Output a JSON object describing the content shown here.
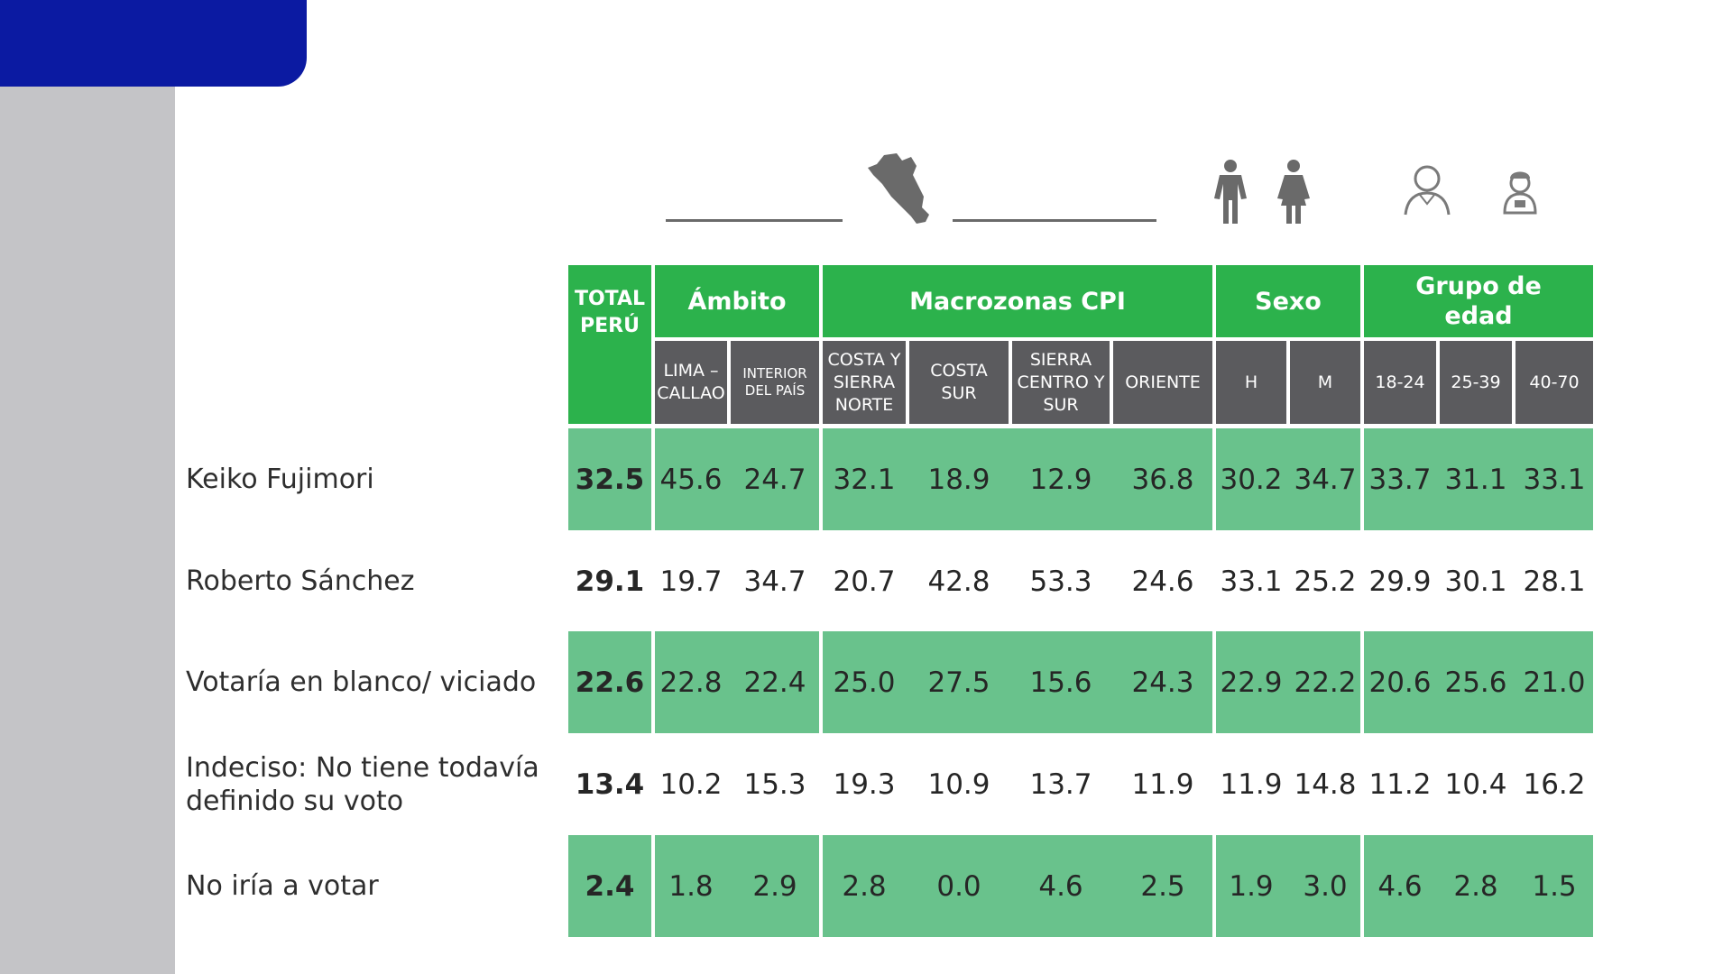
{
  "table": {
    "total_header": "TOTAL PERÚ",
    "groups": [
      {
        "label": "Ámbito",
        "sub": [
          "LIMA – CALLAO",
          "INTERIOR DEL PAÍS"
        ]
      },
      {
        "label": "Macrozonas CPI",
        "sub": [
          "COSTA Y SIERRA NORTE",
          "COSTA SUR",
          "SIERRA CENTRO Y SUR",
          "ORIENTE"
        ]
      },
      {
        "label": "Sexo",
        "sub": [
          "H",
          "M"
        ]
      },
      {
        "label": "Grupo de edad",
        "sub": [
          "18-24",
          "25-39",
          "40-70"
        ]
      }
    ],
    "rows": [
      {
        "label": "Keiko Fujimori",
        "total": "32.5",
        "values": [
          "45.6",
          "24.7",
          "32.1",
          "18.9",
          "12.9",
          "36.8",
          "30.2",
          "34.7",
          "33.7",
          "31.1",
          "33.1"
        ],
        "shaded": true
      },
      {
        "label": "Roberto Sánchez",
        "total": "29.1",
        "values": [
          "19.7",
          "34.7",
          "20.7",
          "42.8",
          "53.3",
          "24.6",
          "33.1",
          "25.2",
          "29.9",
          "30.1",
          "28.1"
        ],
        "shaded": false
      },
      {
        "label": "Votaría en blanco/ viciado",
        "total": "22.6",
        "values": [
          "22.8",
          "22.4",
          "25.0",
          "27.5",
          "15.6",
          "24.3",
          "22.9",
          "22.2",
          "20.6",
          "25.6",
          "21.0"
        ],
        "shaded": true
      },
      {
        "label": "Indeciso: No tiene todavía definido su voto",
        "total": "13.4",
        "values": [
          "10.2",
          "15.3",
          "19.3",
          "10.9",
          "13.7",
          "11.9",
          "11.9",
          "14.8",
          "11.2",
          "10.4",
          "16.2"
        ],
        "shaded": false
      },
      {
        "label": "No iría a votar",
        "total": "2.4",
        "values": [
          "1.8",
          "2.9",
          "2.8",
          "0.0",
          "4.6",
          "2.5",
          "1.9",
          "3.0",
          "4.6",
          "2.8",
          "1.5"
        ],
        "shaded": true
      }
    ]
  },
  "chart_data": {
    "type": "table",
    "columns": [
      "TOTAL PERÚ",
      "LIMA – CALLAO",
      "INTERIOR DEL PAÍS",
      "COSTA Y SIERRA NORTE",
      "COSTA SUR",
      "SIERRA CENTRO Y SUR",
      "ORIENTE",
      "H",
      "M",
      "18-24",
      "25-39",
      "40-70"
    ],
    "column_groups": [
      {
        "name": "Ámbito",
        "columns": [
          "LIMA – CALLAO",
          "INTERIOR DEL PAÍS"
        ]
      },
      {
        "name": "Macrozonas CPI",
        "columns": [
          "COSTA Y SIERRA NORTE",
          "COSTA SUR",
          "SIERRA CENTRO Y SUR",
          "ORIENTE"
        ]
      },
      {
        "name": "Sexo",
        "columns": [
          "H",
          "M"
        ]
      },
      {
        "name": "Grupo de edad",
        "columns": [
          "18-24",
          "25-39",
          "40-70"
        ]
      }
    ],
    "rows": [
      {
        "name": "Keiko Fujimori",
        "values": [
          32.5,
          45.6,
          24.7,
          32.1,
          18.9,
          12.9,
          36.8,
          30.2,
          34.7,
          33.7,
          31.1,
          33.1
        ]
      },
      {
        "name": "Roberto Sánchez",
        "values": [
          29.1,
          19.7,
          34.7,
          20.7,
          42.8,
          53.3,
          24.6,
          33.1,
          25.2,
          29.9,
          30.1,
          28.1
        ]
      },
      {
        "name": "Votaría en blanco/ viciado",
        "values": [
          22.6,
          22.8,
          22.4,
          25.0,
          27.5,
          15.6,
          24.3,
          22.9,
          22.2,
          20.6,
          25.6,
          21.0
        ]
      },
      {
        "name": "Indeciso: No tiene todavía definido su voto",
        "values": [
          13.4,
          10.2,
          15.3,
          19.3,
          10.9,
          13.7,
          11.9,
          11.9,
          14.8,
          11.2,
          10.4,
          16.2
        ]
      },
      {
        "name": "No iría a votar",
        "values": [
          2.4,
          1.8,
          2.9,
          2.8,
          0.0,
          4.6,
          2.5,
          1.9,
          3.0,
          4.6,
          2.8,
          1.5
        ]
      }
    ]
  },
  "colors": {
    "header_green": "#2cb24c",
    "subheader_gray": "#5b5b5e",
    "row_green": "#69c28c",
    "corner_blue": "#0b1aa2",
    "sidebar_gray": "#c4c4c7"
  },
  "icons": [
    "peru-map-icon",
    "man-icon",
    "woman-icon",
    "young-person-icon",
    "older-person-icon"
  ]
}
